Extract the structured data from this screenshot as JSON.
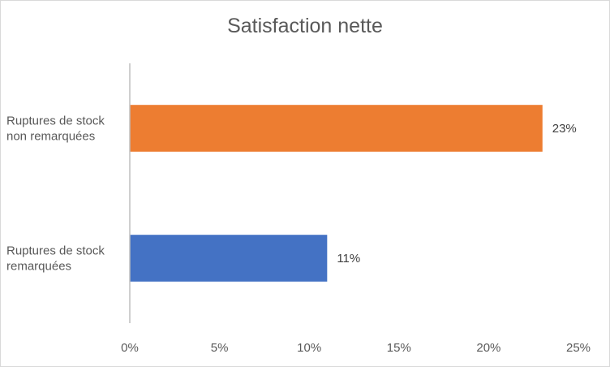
{
  "chart_data": {
    "type": "bar",
    "orientation": "horizontal",
    "title": "Satisfaction nette",
    "xlabel": "",
    "ylabel": "",
    "xlim": [
      0,
      25
    ],
    "x_ticks": [
      "0%",
      "5%",
      "10%",
      "15%",
      "20%",
      "25%"
    ],
    "x_tick_values": [
      0,
      5,
      10,
      15,
      20,
      25
    ],
    "categories": [
      [
        "Ruptures de stock",
        "non remarquées"
      ],
      [
        "Ruptures de stock",
        "remarquées"
      ]
    ],
    "values": [
      23,
      11
    ],
    "data_labels": [
      "23%",
      "11%"
    ],
    "colors": [
      "#ED7D31",
      "#4472C4"
    ],
    "grid": false,
    "legend": "none"
  }
}
